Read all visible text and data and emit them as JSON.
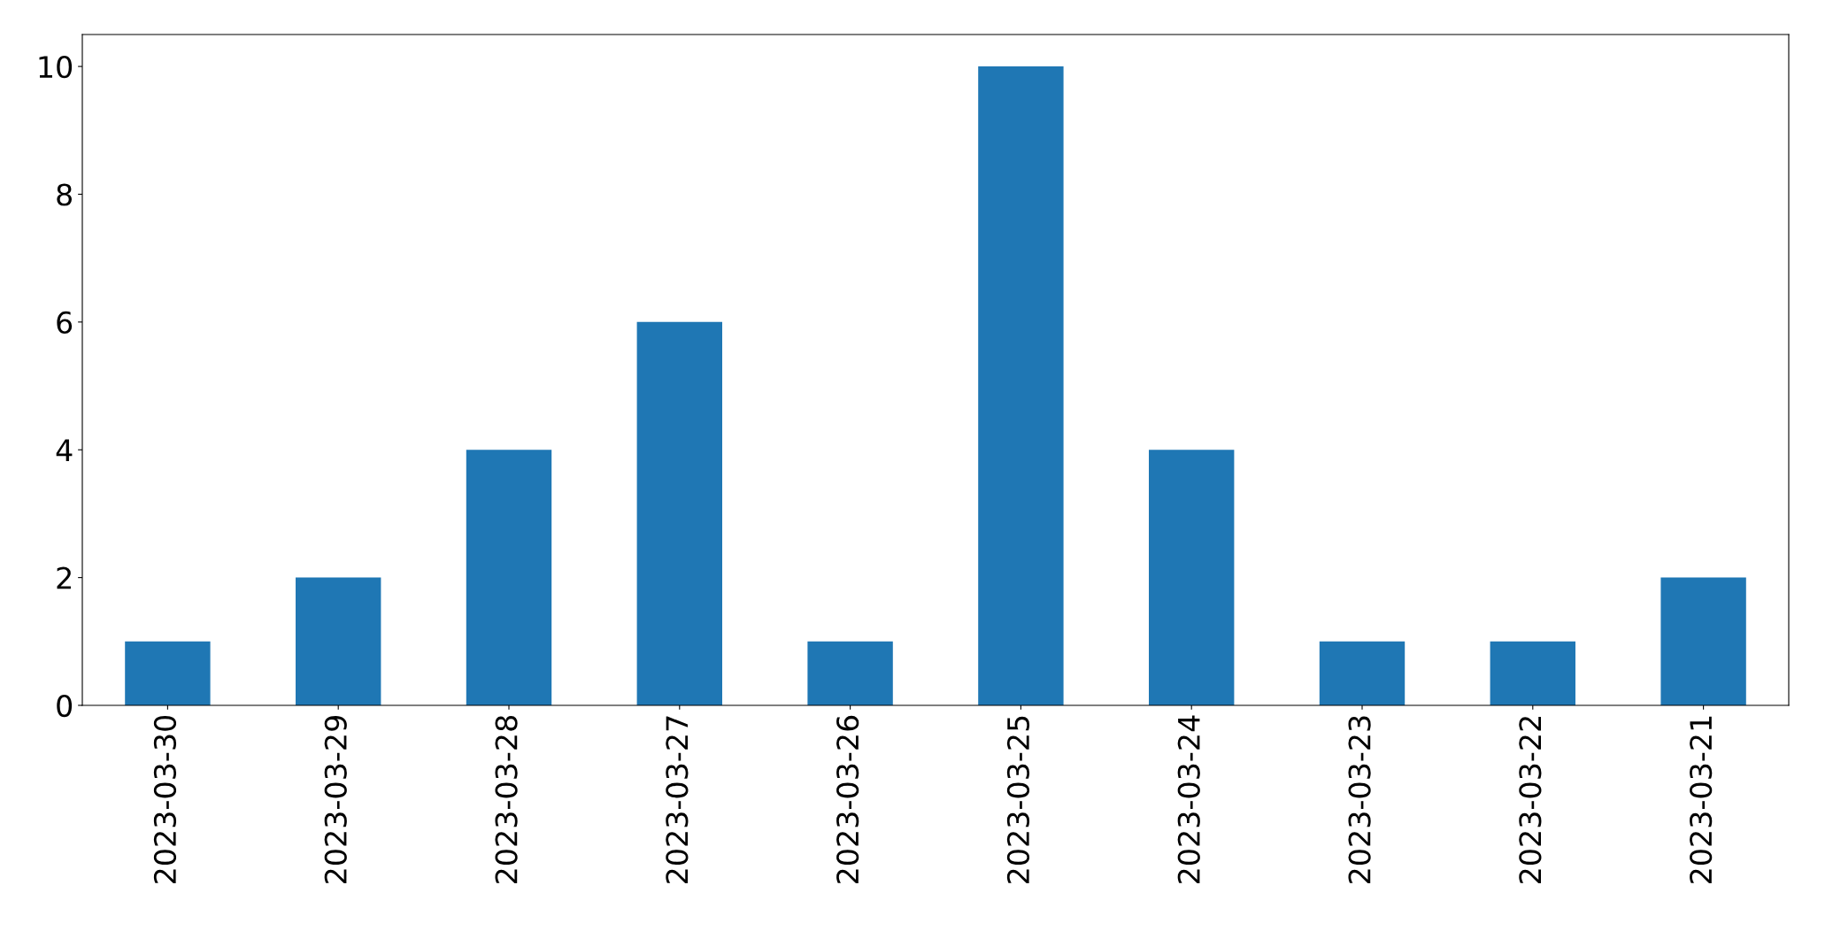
{
  "chart_data": {
    "type": "bar",
    "categories": [
      "2023-03-30",
      "2023-03-29",
      "2023-03-28",
      "2023-03-27",
      "2023-03-26",
      "2023-03-25",
      "2023-03-24",
      "2023-03-23",
      "2023-03-22",
      "2023-03-21"
    ],
    "values": [
      1,
      2,
      4,
      6,
      1,
      10,
      4,
      1,
      1,
      2
    ],
    "color": "#1f77b4",
    "ylim": [
      0,
      10.5
    ],
    "yticks": [
      0,
      2,
      4,
      6,
      8,
      10
    ],
    "grid": false,
    "legend": false
  }
}
